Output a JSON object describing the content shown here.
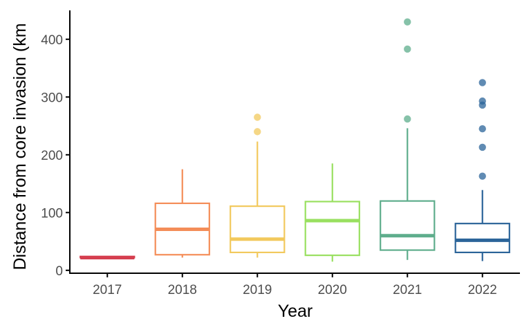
{
  "chart_data": {
    "type": "box",
    "xlabel": "Year",
    "ylabel": "Distance from core invasion (km",
    "ylim": [
      -5,
      450
    ],
    "yticks": [
      0,
      100,
      200,
      300,
      400
    ],
    "categories": [
      "2017",
      "2018",
      "2019",
      "2020",
      "2021",
      "2022"
    ],
    "grid": false,
    "legend": "none",
    "boxes": [
      {
        "category": "2017",
        "color": "#d53e4f",
        "whisker_low": 22,
        "q1": 22,
        "median": 22,
        "q3": 24,
        "whisker_high": 24,
        "outliers": []
      },
      {
        "category": "2018",
        "color": "#f48d58",
        "whisker_low": 22,
        "q1": 27,
        "median": 71,
        "q3": 116,
        "whisker_high": 175,
        "outliers": []
      },
      {
        "category": "2019",
        "color": "#f2c95d",
        "whisker_low": 22,
        "q1": 31,
        "median": 54,
        "q3": 111,
        "whisker_high": 223,
        "outliers": [
          240,
          265
        ]
      },
      {
        "category": "2020",
        "color": "#99e060",
        "whisker_low": 15,
        "q1": 26,
        "median": 86,
        "q3": 119,
        "whisker_high": 185,
        "outliers": []
      },
      {
        "category": "2021",
        "color": "#5ead8c",
        "whisker_low": 18,
        "q1": 35,
        "median": 60,
        "q3": 120,
        "whisker_high": 246,
        "outliers": [
          262,
          383,
          430
        ]
      },
      {
        "category": "2022",
        "color": "#2b6499",
        "whisker_low": 16,
        "q1": 31,
        "median": 52,
        "q3": 81,
        "whisker_high": 139,
        "outliers": [
          163,
          213,
          245,
          286,
          293,
          325
        ]
      }
    ]
  }
}
